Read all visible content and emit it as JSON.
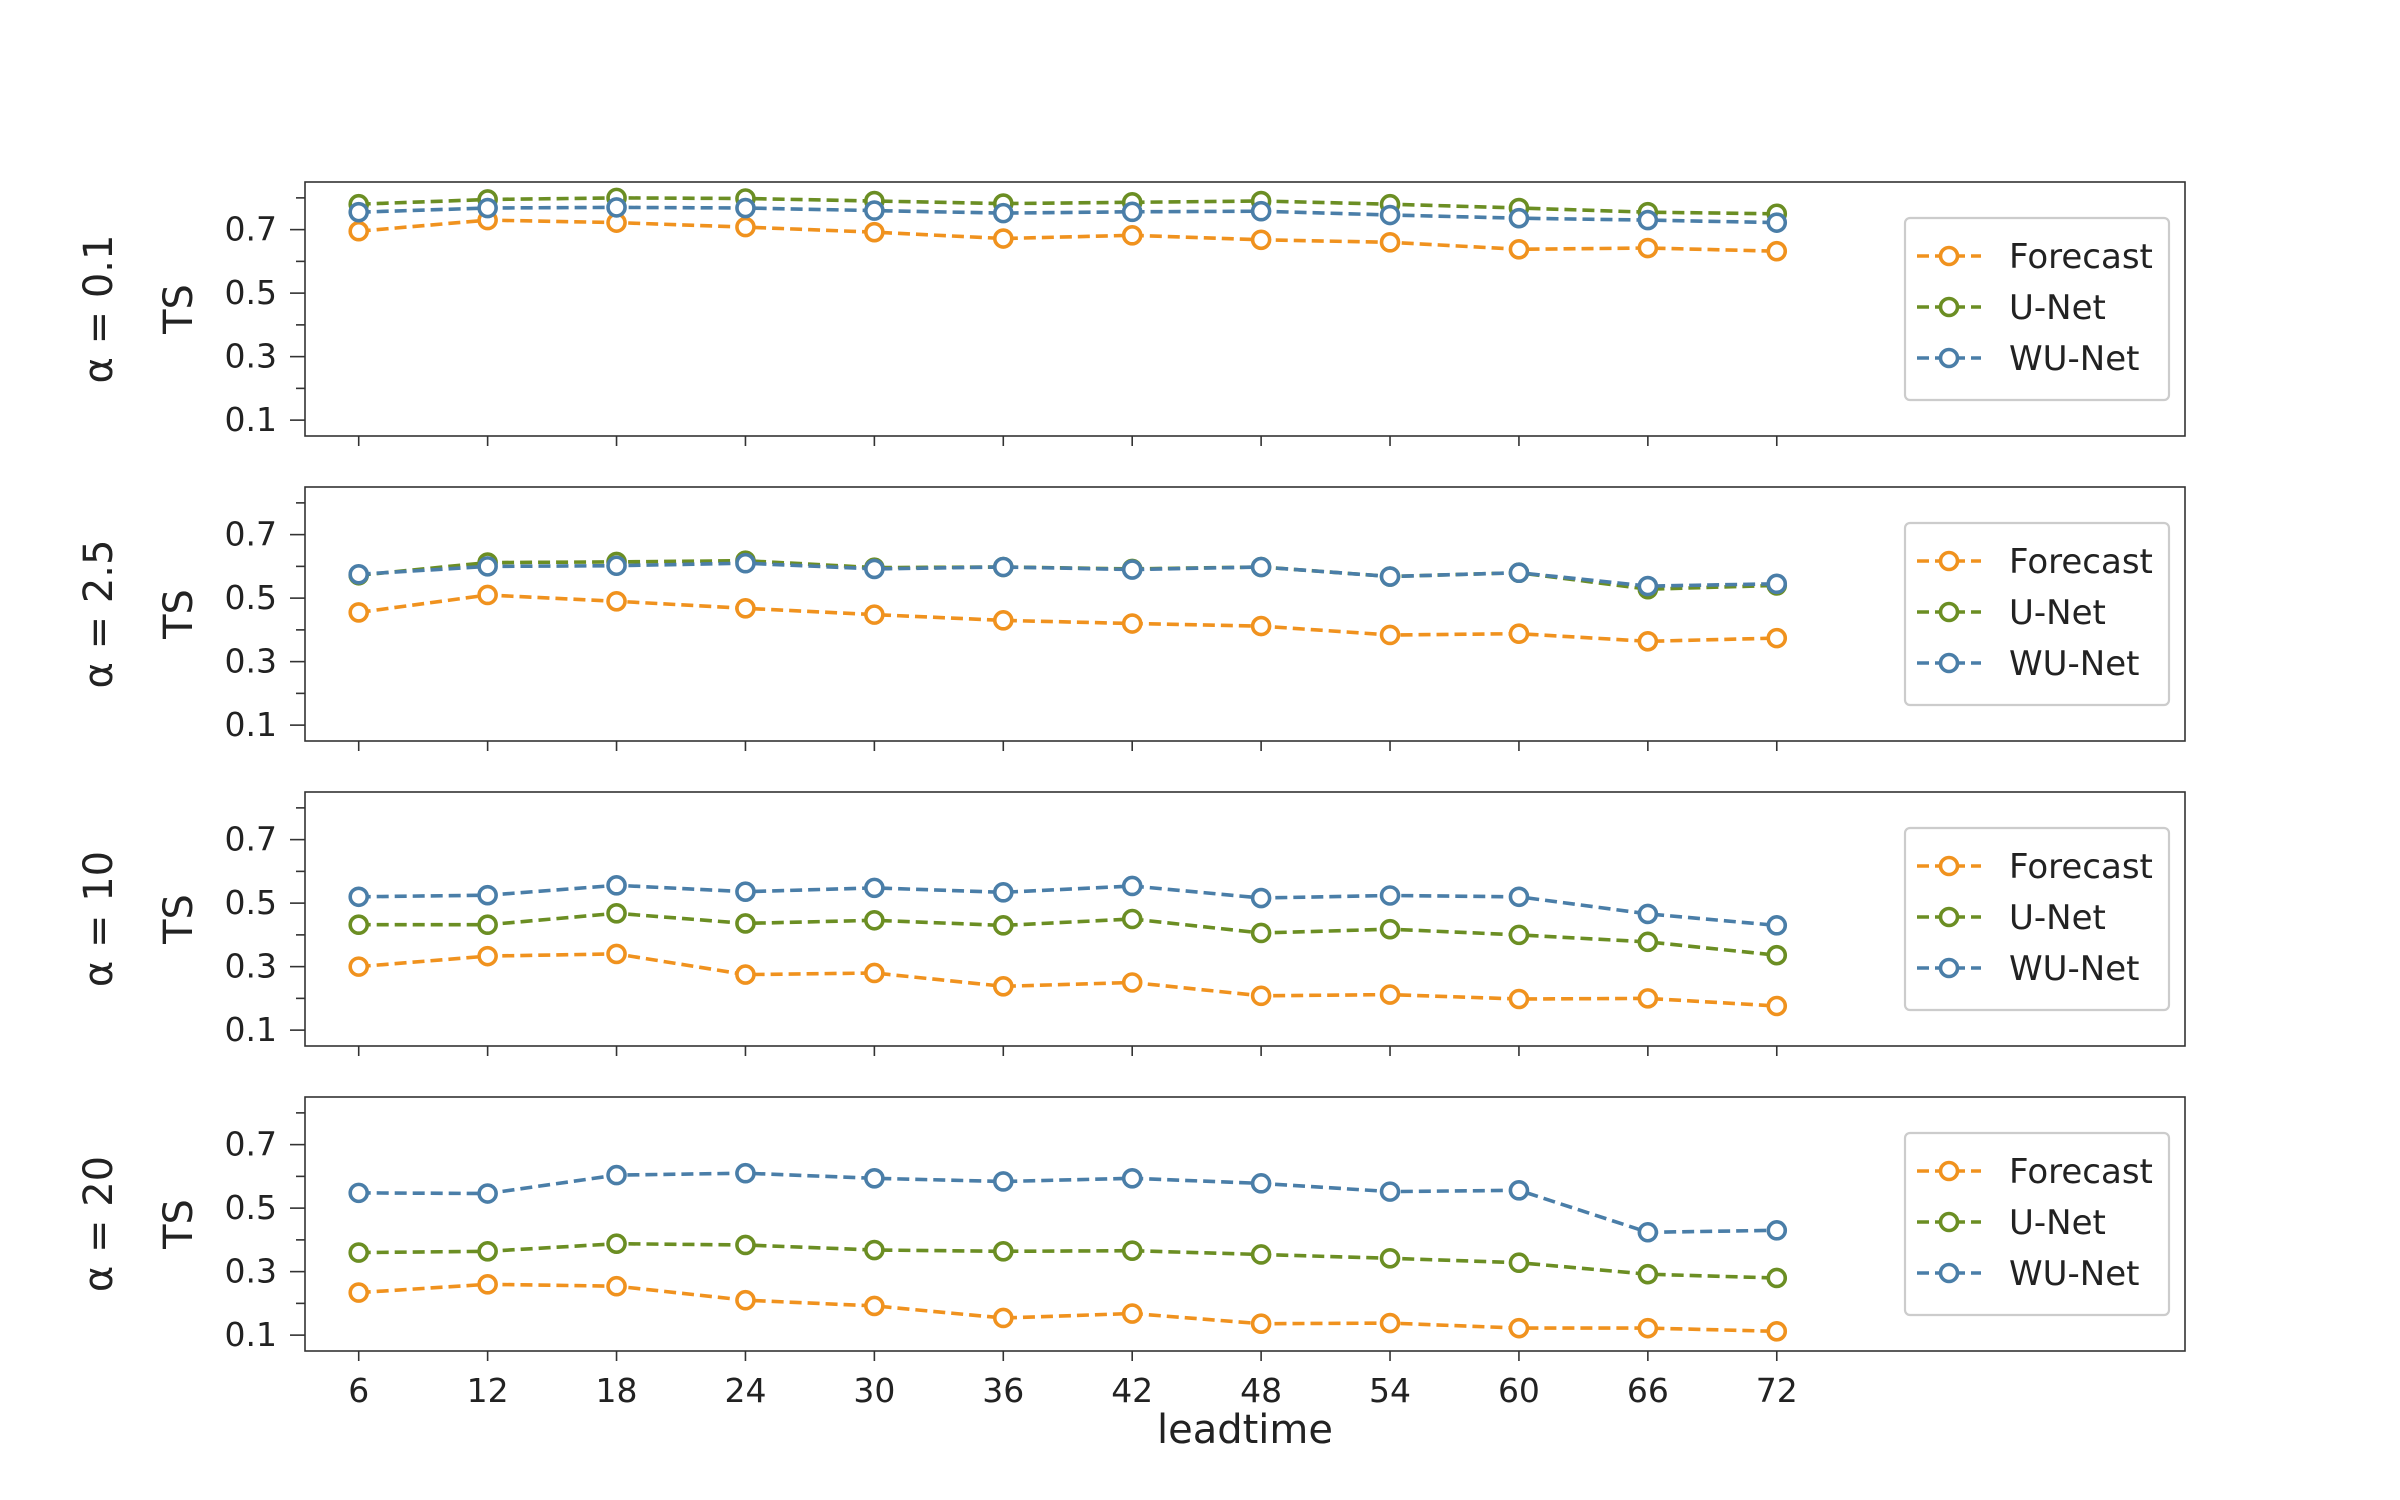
{
  "chart_data": {
    "type": "line",
    "x": [
      6,
      12,
      18,
      24,
      30,
      36,
      42,
      48,
      54,
      60,
      66,
      72
    ],
    "xlabel": "leadtime",
    "xticks": [
      "6",
      "12",
      "18",
      "24",
      "30",
      "36",
      "42",
      "48",
      "54",
      "60",
      "66",
      "72"
    ],
    "ylabel": "TS",
    "ylim": [
      0.05,
      0.85
    ],
    "yticks": [
      "0.1",
      "0.3",
      "0.5",
      "0.7"
    ],
    "legend_position": "right",
    "colors": {
      "Forecast": "#f0921e",
      "U-Net": "#6b8e23",
      "WU-Net": "#4a7ea8"
    },
    "panels": [
      {
        "label": "α = 0.1",
        "series": [
          {
            "name": "Forecast",
            "values": [
              0.695,
              0.73,
              0.722,
              0.708,
              0.692,
              0.672,
              0.682,
              0.668,
              0.66,
              0.638,
              0.642,
              0.632
            ]
          },
          {
            "name": "U-Net",
            "values": [
              0.78,
              0.795,
              0.8,
              0.798,
              0.79,
              0.782,
              0.786,
              0.79,
              0.78,
              0.768,
              0.755,
              0.75
            ]
          },
          {
            "name": "WU-Net",
            "values": [
              0.755,
              0.768,
              0.77,
              0.768,
              0.76,
              0.752,
              0.756,
              0.758,
              0.746,
              0.736,
              0.73,
              0.722
            ]
          }
        ]
      },
      {
        "label": "α = 2.5",
        "series": [
          {
            "name": "Forecast",
            "values": [
              0.455,
              0.51,
              0.49,
              0.468,
              0.448,
              0.43,
              0.42,
              0.412,
              0.384,
              0.388,
              0.364,
              0.374
            ]
          },
          {
            "name": "U-Net",
            "values": [
              0.572,
              0.612,
              0.614,
              0.618,
              0.596,
              0.598,
              0.592,
              0.598,
              0.568,
              0.58,
              0.528,
              0.54
            ]
          },
          {
            "name": "WU-Net",
            "values": [
              0.575,
              0.6,
              0.602,
              0.61,
              0.592,
              0.598,
              0.59,
              0.598,
              0.568,
              0.58,
              0.538,
              0.545
            ]
          }
        ]
      },
      {
        "label": "α = 10",
        "series": [
          {
            "name": "Forecast",
            "values": [
              0.3,
              0.333,
              0.34,
              0.275,
              0.28,
              0.238,
              0.25,
              0.208,
              0.212,
              0.198,
              0.2,
              0.176
            ]
          },
          {
            "name": "U-Net",
            "values": [
              0.432,
              0.432,
              0.468,
              0.436,
              0.446,
              0.43,
              0.45,
              0.406,
              0.418,
              0.4,
              0.378,
              0.336
            ]
          },
          {
            "name": "WU-Net",
            "values": [
              0.52,
              0.525,
              0.556,
              0.536,
              0.548,
              0.534,
              0.554,
              0.516,
              0.524,
              0.52,
              0.466,
              0.43
            ]
          }
        ]
      },
      {
        "label": "α = 20",
        "series": [
          {
            "name": "Forecast",
            "values": [
              0.234,
              0.26,
              0.254,
              0.21,
              0.192,
              0.154,
              0.168,
              0.136,
              0.138,
              0.122,
              0.122,
              0.112
            ]
          },
          {
            "name": "U-Net",
            "values": [
              0.36,
              0.364,
              0.388,
              0.384,
              0.368,
              0.364,
              0.366,
              0.354,
              0.342,
              0.328,
              0.292,
              0.28
            ]
          },
          {
            "name": "WU-Net",
            "values": [
              0.548,
              0.546,
              0.604,
              0.61,
              0.594,
              0.584,
              0.594,
              0.578,
              0.552,
              0.556,
              0.424,
              0.43
            ]
          }
        ]
      }
    ]
  }
}
